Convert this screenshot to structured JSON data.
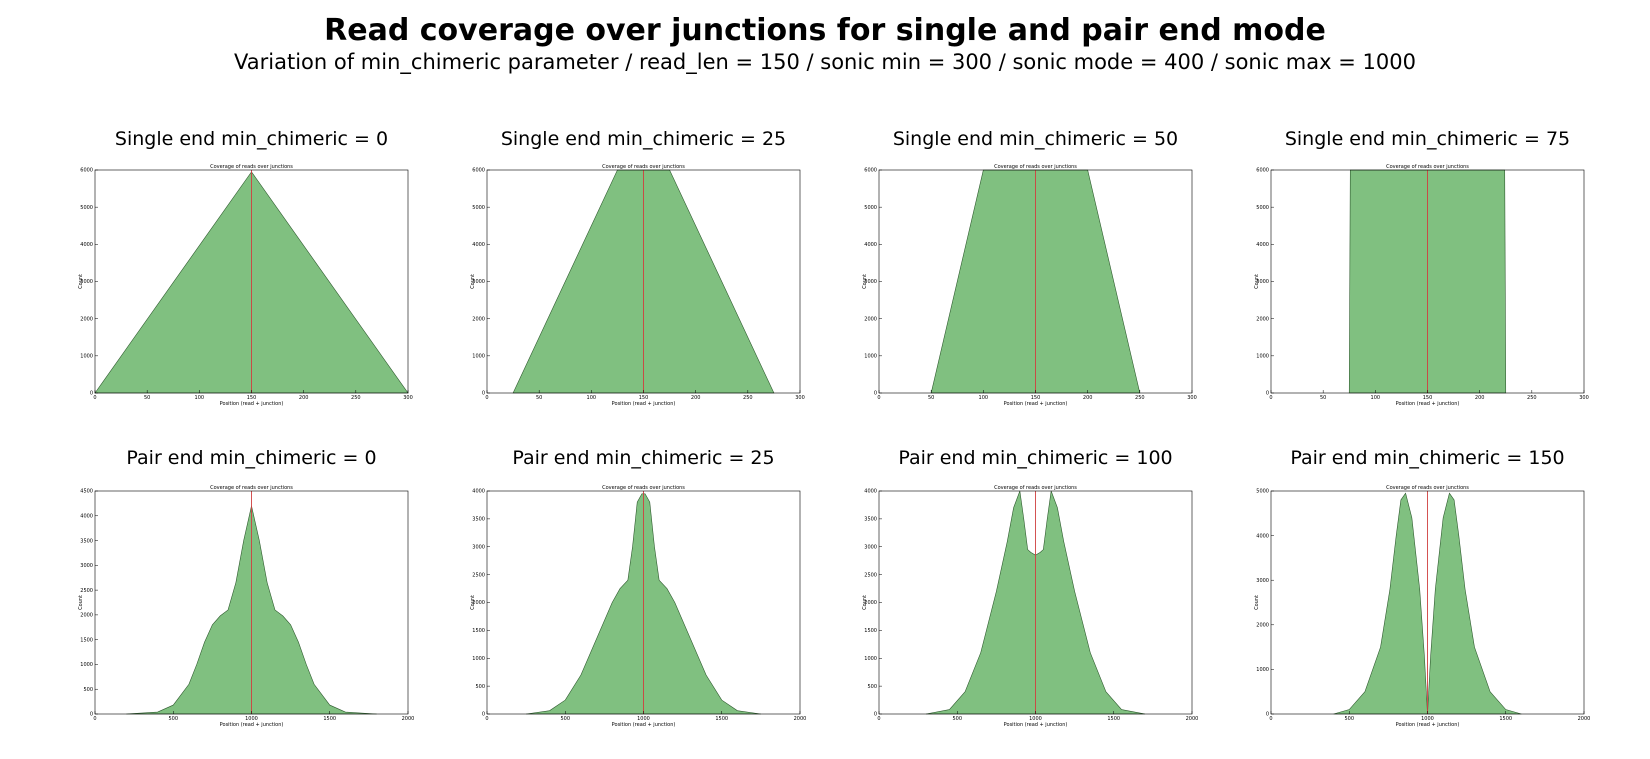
{
  "header": {
    "title": "Read coverage over junctions for single and pair end mode",
    "subtitle": "Variation of min_chimeric parameter / read_len = 150 / sonic min = 300 / sonic mode = 400 / sonic max = 1000"
  },
  "colors": {
    "fill": "#80c080",
    "edge": "#2e5a2e",
    "junction_line": "#d04040",
    "frame": "#000000"
  },
  "chart_data": [
    {
      "type": "area",
      "panel_title": "Single end min_chimeric = 0",
      "title": "Coverage of reads over junctions",
      "xlabel": "Position (read + junction)",
      "ylabel": "Count",
      "xlim": [
        0,
        300
      ],
      "ylim": [
        0,
        6000
      ],
      "xticks": [
        0,
        50,
        100,
        150,
        200,
        250,
        300
      ],
      "yticks": [
        0,
        1000,
        2000,
        3000,
        4000,
        5000,
        6000
      ],
      "junction_x": 150,
      "x": [
        0,
        150,
        300
      ],
      "y": [
        0,
        5950,
        0
      ]
    },
    {
      "type": "area",
      "panel_title": "Single end min_chimeric = 25",
      "title": "Coverage of reads over junctions",
      "xlabel": "Position (read + junction)",
      "ylabel": "Count",
      "xlim": [
        0,
        300
      ],
      "ylim": [
        0,
        6000
      ],
      "xticks": [
        0,
        50,
        100,
        150,
        200,
        250,
        300
      ],
      "yticks": [
        0,
        1000,
        2000,
        3000,
        4000,
        5000,
        6000
      ],
      "junction_x": 150,
      "x": [
        25,
        125,
        175,
        275
      ],
      "y": [
        0,
        6000,
        6000,
        0
      ]
    },
    {
      "type": "area",
      "panel_title": "Single end min_chimeric = 50",
      "title": "Coverage of reads over junctions",
      "xlabel": "Position (read + junction)",
      "ylabel": "Count",
      "xlim": [
        0,
        300
      ],
      "ylim": [
        0,
        6000
      ],
      "xticks": [
        0,
        50,
        100,
        150,
        200,
        250,
        300
      ],
      "yticks": [
        0,
        1000,
        2000,
        3000,
        4000,
        5000,
        6000
      ],
      "junction_x": 150,
      "x": [
        50,
        100,
        200,
        250
      ],
      "y": [
        0,
        6000,
        6000,
        0
      ]
    },
    {
      "type": "area",
      "panel_title": "Single end min_chimeric = 75",
      "title": "Coverage of reads over junctions",
      "xlabel": "Position (read + junction)",
      "ylabel": "Count",
      "xlim": [
        0,
        300
      ],
      "ylim": [
        0,
        6000
      ],
      "xticks": [
        0,
        50,
        100,
        150,
        200,
        250,
        300
      ],
      "yticks": [
        0,
        1000,
        2000,
        3000,
        4000,
        5000,
        6000
      ],
      "junction_x": 150,
      "x": [
        75,
        76,
        224,
        225
      ],
      "y": [
        0,
        6000,
        6000,
        0
      ]
    },
    {
      "type": "area",
      "panel_title": "Pair end min_chimeric = 0",
      "title": "Coverage of reads over junctions",
      "xlabel": "Position (read + junction)",
      "ylabel": "Count",
      "xlim": [
        0,
        2000
      ],
      "ylim": [
        0,
        4500
      ],
      "xticks": [
        0,
        500,
        1000,
        1500,
        2000
      ],
      "yticks": [
        0,
        500,
        1000,
        1500,
        2000,
        2500,
        3000,
        3500,
        4000,
        4500
      ],
      "junction_x": 1000,
      "x": [
        200,
        400,
        500,
        600,
        650,
        700,
        750,
        800,
        850,
        900,
        950,
        1000,
        1050,
        1100,
        1150,
        1200,
        1250,
        1300,
        1350,
        1400,
        1500,
        1600,
        1800
      ],
      "y": [
        0,
        40,
        180,
        600,
        1000,
        1450,
        1800,
        1980,
        2100,
        2650,
        3500,
        4200,
        3500,
        2650,
        2100,
        1980,
        1800,
        1450,
        1000,
        600,
        180,
        40,
        0
      ]
    },
    {
      "type": "area",
      "panel_title": "Pair end min_chimeric = 25",
      "title": "Coverage of reads over junctions",
      "xlabel": "Position (read + junction)",
      "ylabel": "Count",
      "xlim": [
        0,
        2000
      ],
      "ylim": [
        0,
        4000
      ],
      "xticks": [
        0,
        500,
        1000,
        1500,
        2000
      ],
      "yticks": [
        0,
        500,
        1000,
        1500,
        2000,
        2500,
        3000,
        3500,
        4000
      ],
      "junction_x": 1000,
      "x": [
        250,
        400,
        500,
        600,
        700,
        800,
        850,
        900,
        930,
        960,
        990,
        1000,
        1010,
        1040,
        1070,
        1100,
        1150,
        1200,
        1300,
        1400,
        1500,
        1600,
        1750
      ],
      "y": [
        0,
        60,
        250,
        700,
        1350,
        2000,
        2250,
        2400,
        3000,
        3800,
        3950,
        3950,
        3950,
        3800,
        3000,
        2400,
        2250,
        2000,
        1350,
        700,
        250,
        60,
        0
      ]
    },
    {
      "type": "area",
      "panel_title": "Pair end min_chimeric = 100",
      "title": "Coverage of reads over junctions",
      "xlabel": "Position (read + junction)",
      "ylabel": "Count",
      "xlim": [
        0,
        2000
      ],
      "ylim": [
        0,
        4000
      ],
      "xticks": [
        0,
        500,
        1000,
        1500,
        2000
      ],
      "yticks": [
        0,
        500,
        1000,
        1500,
        2000,
        2500,
        3000,
        3500,
        4000
      ],
      "junction_x": 1000,
      "x": [
        300,
        450,
        550,
        650,
        750,
        820,
        860,
        900,
        925,
        950,
        970,
        1000,
        1030,
        1050,
        1075,
        1100,
        1140,
        1180,
        1250,
        1350,
        1450,
        1550,
        1700
      ],
      "y": [
        0,
        80,
        400,
        1100,
        2200,
        3100,
        3700,
        4000,
        3500,
        2950,
        2900,
        2850,
        2900,
        2950,
        3500,
        4000,
        3700,
        3100,
        2200,
        1100,
        400,
        80,
        0
      ]
    },
    {
      "type": "area",
      "panel_title": "Pair end min_chimeric = 150",
      "title": "Coverage of reads over junctions",
      "xlabel": "Position (read + junction)",
      "ylabel": "Count",
      "xlim": [
        0,
        2000
      ],
      "ylim": [
        0,
        5000
      ],
      "xticks": [
        0,
        500,
        1000,
        1500,
        2000
      ],
      "yticks": [
        0,
        1000,
        2000,
        3000,
        4000,
        5000
      ],
      "junction_x": 1000,
      "x": [
        400,
        500,
        600,
        700,
        760,
        800,
        830,
        860,
        900,
        950,
        980,
        1000,
        1020,
        1050,
        1100,
        1140,
        1170,
        1200,
        1240,
        1300,
        1400,
        1500,
        1600
      ],
      "y": [
        0,
        100,
        500,
        1500,
        2800,
        4000,
        4800,
        4950,
        4400,
        2800,
        1300,
        0,
        1300,
        2800,
        4400,
        4950,
        4800,
        4000,
        2800,
        1500,
        500,
        100,
        0
      ]
    }
  ]
}
